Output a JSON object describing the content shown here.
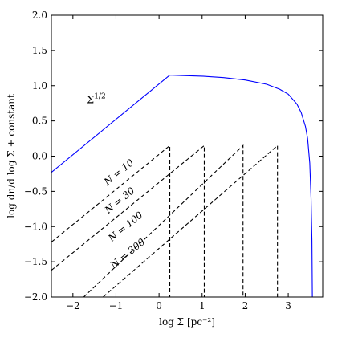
{
  "chart_data": {
    "type": "line",
    "xlabel": "log Σ [pc⁻²]",
    "ylabel": "log dn/d log Σ + constant",
    "xlim": [
      -2.5,
      3.8
    ],
    "ylim": [
      -2.0,
      2.0
    ],
    "xticks": [
      -2,
      -1,
      0,
      1,
      2,
      3
    ],
    "xtick_labels": [
      "−2",
      "−1",
      "0",
      "1",
      "2",
      "3"
    ],
    "yticks": [
      -2.0,
      -1.5,
      -1.0,
      -0.5,
      0.0,
      0.5,
      1.0,
      1.5,
      2.0
    ],
    "ytick_labels": [
      "−2.0",
      "−1.5",
      "−1.0",
      "−0.5",
      "0.0",
      "0.5",
      "1.0",
      "1.5",
      "2.0"
    ],
    "grid": false,
    "series": [
      {
        "color": "#0000ff",
        "style": "solid",
        "points": [
          [
            -2.5,
            -0.23
          ],
          [
            0.25,
            1.15
          ],
          [
            0.5,
            1.145
          ],
          [
            1.0,
            1.135
          ],
          [
            1.5,
            1.115
          ],
          [
            2.0,
            1.08
          ],
          [
            2.5,
            1.02
          ],
          [
            2.8,
            0.95
          ],
          [
            3.0,
            0.88
          ],
          [
            3.2,
            0.74
          ],
          [
            3.3,
            0.62
          ],
          [
            3.4,
            0.42
          ],
          [
            3.45,
            0.25
          ],
          [
            3.5,
            -0.1
          ],
          [
            3.53,
            -0.6
          ],
          [
            3.55,
            -1.2
          ],
          [
            3.56,
            -2.0
          ]
        ]
      },
      {
        "color": "#000000",
        "style": "dashed",
        "points": [
          [
            -2.5,
            -1.22
          ],
          [
            0.25,
            0.15
          ],
          [
            0.25,
            -2.0
          ]
        ]
      },
      {
        "color": "#000000",
        "style": "dashed",
        "points": [
          [
            -2.5,
            -1.62
          ],
          [
            1.05,
            0.15
          ],
          [
            1.05,
            -2.0
          ]
        ]
      },
      {
        "color": "#000000",
        "style": "dashed",
        "points": [
          [
            -2.5,
            -2.0
          ],
          [
            -1.75,
            -2.0
          ],
          [
            1.95,
            0.15
          ],
          [
            1.95,
            -2.0
          ]
        ]
      },
      {
        "color": "#000000",
        "style": "dashed",
        "points": [
          [
            -1.3,
            -2.0
          ],
          [
            2.75,
            0.15
          ],
          [
            2.75,
            -2.0
          ]
        ]
      }
    ],
    "annotations": [
      {
        "id": "sigma",
        "base": "Σ",
        "sup": "1/2",
        "x": -1.68,
        "y": 0.75,
        "rotate": false
      },
      {
        "id": "n10",
        "text": "N = 10",
        "x": -1.2,
        "y": -0.42,
        "rotate": true
      },
      {
        "id": "n30",
        "text": "N = 30",
        "x": -1.18,
        "y": -0.82,
        "rotate": true
      },
      {
        "id": "n100",
        "text": "N = 100",
        "x": -1.1,
        "y": -1.22,
        "rotate": true
      },
      {
        "id": "n300",
        "text": "N = 300",
        "x": -1.05,
        "y": -1.6,
        "rotate": true
      }
    ]
  }
}
